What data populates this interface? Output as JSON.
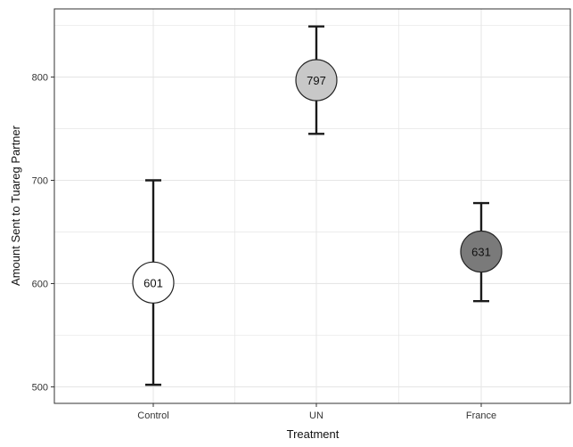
{
  "chart_data": {
    "type": "scatter",
    "xlabel": "Treatment",
    "ylabel": "Amount Sent to Tuareg Partner",
    "categories": [
      "Control",
      "UN",
      "France"
    ],
    "points": [
      {
        "category": "Control",
        "mean": 601,
        "label": "601",
        "lower": 502,
        "upper": 700,
        "fill": "#ffffff"
      },
      {
        "category": "UN",
        "mean": 797,
        "label": "797",
        "lower": 745,
        "upper": 849,
        "fill": "#c8c8c8"
      },
      {
        "category": "France",
        "mean": 631,
        "label": "631",
        "lower": 583,
        "upper": 678,
        "fill": "#7a7a7a"
      }
    ],
    "yticks": [
      500,
      600,
      700,
      800
    ],
    "ylim": [
      484,
      866
    ],
    "grid": true
  },
  "colors": {
    "grid": "#e6e6e6",
    "axis": "#333333",
    "errorbar": "#1a1a1a"
  }
}
